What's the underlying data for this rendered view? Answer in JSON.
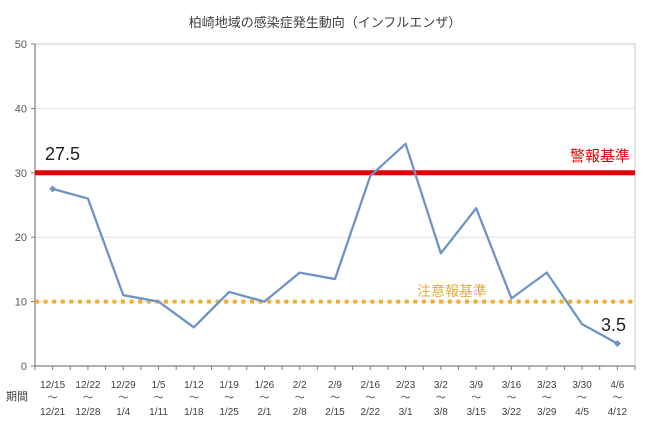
{
  "chart_data": {
    "type": "line",
    "title": "柏崎地域の感染症発生動向（インフルエンザ）",
    "x_axis_label": "期間",
    "range_separator": "～",
    "ylim": [
      0,
      50
    ],
    "y_ticks": [
      0,
      10,
      20,
      30,
      40,
      50
    ],
    "grid": true,
    "legend_position": "none",
    "categories": [
      {
        "start": "12/15",
        "end": "12/21"
      },
      {
        "start": "12/22",
        "end": "12/28"
      },
      {
        "start": "12/29",
        "end": "1/4"
      },
      {
        "start": "1/5",
        "end": "1/11"
      },
      {
        "start": "1/12",
        "end": "1/18"
      },
      {
        "start": "1/19",
        "end": "1/25"
      },
      {
        "start": "1/26",
        "end": "2/1"
      },
      {
        "start": "2/2",
        "end": "2/8"
      },
      {
        "start": "2/9",
        "end": "2/15"
      },
      {
        "start": "2/16",
        "end": "2/22"
      },
      {
        "start": "2/23",
        "end": "3/1"
      },
      {
        "start": "3/2",
        "end": "3/8"
      },
      {
        "start": "3/9",
        "end": "3/15"
      },
      {
        "start": "3/16",
        "end": "3/22"
      },
      {
        "start": "3/23",
        "end": "3/29"
      },
      {
        "start": "3/30",
        "end": "4/5"
      },
      {
        "start": "4/6",
        "end": "4/12"
      }
    ],
    "series": [
      {
        "color": "#6D94C5",
        "values": [
          27.5,
          26,
          11,
          10,
          6,
          11.5,
          10,
          14.5,
          13.5,
          29.5,
          34.5,
          17.5,
          24.5,
          10.5,
          14.5,
          6.5,
          3.5
        ]
      }
    ],
    "reference_lines": [
      {
        "label": "警報基準",
        "value": 30,
        "color": "#E60000",
        "style": "solid"
      },
      {
        "label": "注意報基準",
        "value": 10,
        "color": "#EFB02F",
        "style": "dotted"
      }
    ],
    "annotations": [
      {
        "text": "27.5",
        "point_index": 0
      },
      {
        "text": "3.5",
        "point_index": 16
      }
    ]
  }
}
